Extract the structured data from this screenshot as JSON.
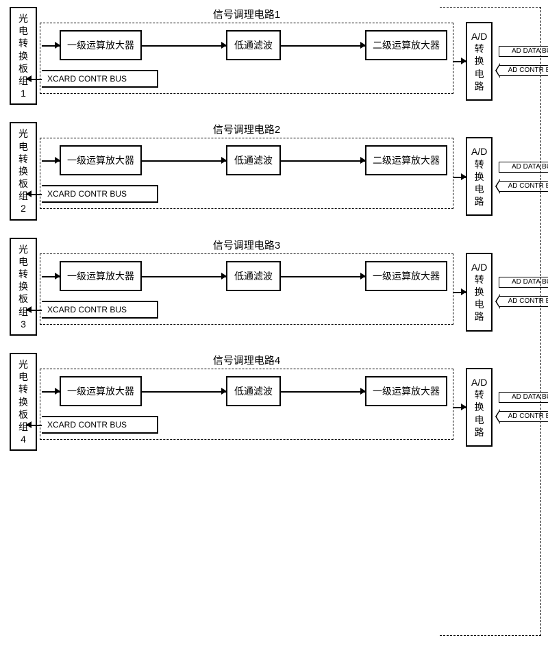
{
  "channels": [
    {
      "left_label": "光电转换板组1",
      "title": "信号调理电路1",
      "amp1": "一级运算放大器",
      "lpf": "低通滤波",
      "amp2": "二级运算放大器",
      "adc": "A/D转换电路",
      "xcard": "XCARD CONTR BUS",
      "bus_data": "AD DATA BUS",
      "bus_ctrl": "AD CONTR BUS"
    },
    {
      "left_label": "光电转换板组2",
      "title": "信号调理电路2",
      "amp1": "一级运算放大器",
      "lpf": "低通滤波",
      "amp2": "二级运算放大器",
      "adc": "A/D转换电路",
      "xcard": "XCARD CONTR BUS",
      "bus_data": "AD DATA BUS",
      "bus_ctrl": "AD CONTR BUS"
    },
    {
      "left_label": "光电转换板组3",
      "title": "信号调理电路3",
      "amp1": "一级运算放大器",
      "lpf": "低通滤波",
      "amp2": "一级运算放大器",
      "adc": "A/D转换电路",
      "xcard": "XCARD CONTR BUS",
      "bus_data": "AD DATA BUS",
      "bus_ctrl": "AD CONTR BUS"
    },
    {
      "left_label": "光电转换板组4",
      "title": "信号调理电路4",
      "amp1": "一级运算放大器",
      "lpf": "低通滤波",
      "amp2": "一级运算放大器",
      "adc": "A/D转换电路",
      "xcard": "XCARD CONTR BUS",
      "bus_data": "AD DATA BUS",
      "bus_ctrl": "AD CONTR BUS"
    }
  ],
  "style": {
    "border_color": "#000000",
    "background": "#ffffff",
    "dash_pattern": "4 3",
    "arrowhead_size": 8,
    "box_border_width": 2
  }
}
